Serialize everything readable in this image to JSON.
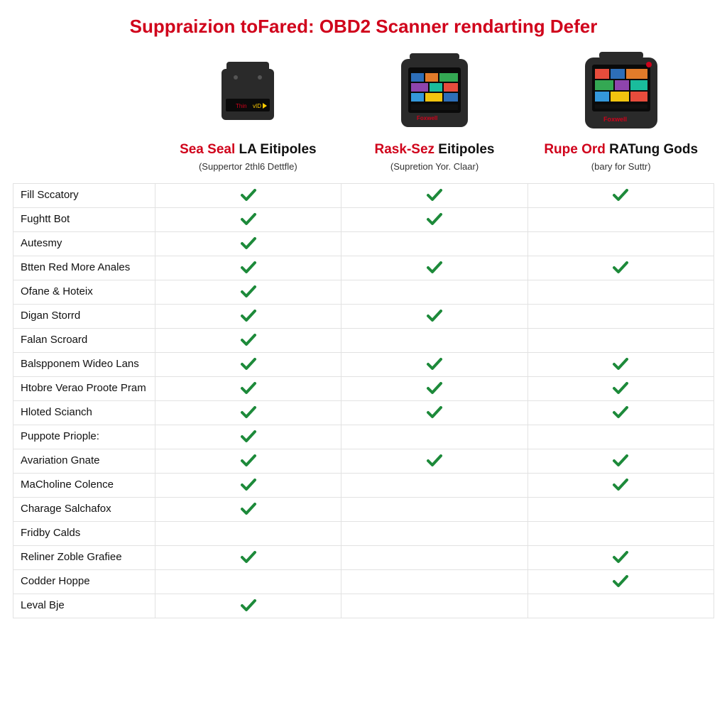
{
  "title": "Suppraizion toFared: OBD2 Scanner rendarting Defer",
  "title_color": "#d0021b",
  "check_color": "#1d8a3a",
  "border_color": "#e2e2e2",
  "products": [
    {
      "name_red": "Sea Seal",
      "name_black": " LA Eitipoles",
      "subtitle": "(Suppertor 2thl6 Dettfle)",
      "device_style": "small"
    },
    {
      "name_red": "Rask-Sez",
      "name_black": " Eitipoles",
      "subtitle": "(Supretion Yor. Claar)",
      "device_style": "medium"
    },
    {
      "name_red": "Rupe Ord",
      "name_black": " RATung Gods",
      "subtitle": "(bary for Suttr)",
      "device_style": "large"
    }
  ],
  "features": [
    {
      "label": "Fill Sccatory",
      "checks": [
        true,
        true,
        true
      ]
    },
    {
      "label": "Fughtt Bot",
      "checks": [
        true,
        true,
        false
      ]
    },
    {
      "label": "Autesmy",
      "checks": [
        true,
        false,
        false
      ]
    },
    {
      "label": "Btten Red More Anales",
      "checks": [
        true,
        true,
        true
      ]
    },
    {
      "label": "Ofane & Hoteix",
      "checks": [
        true,
        false,
        false
      ]
    },
    {
      "label": "Digan Storrd",
      "checks": [
        true,
        true,
        false
      ]
    },
    {
      "label": "Falan Scroard",
      "checks": [
        true,
        false,
        false
      ]
    },
    {
      "label": "Balspponem Wideo Lans",
      "checks": [
        true,
        true,
        true
      ]
    },
    {
      "label": "Htobre Verao Proote Pram",
      "checks": [
        true,
        true,
        true
      ]
    },
    {
      "label": "Hloted Scianch",
      "checks": [
        true,
        true,
        true
      ]
    },
    {
      "label": "Puppote Priople:",
      "checks": [
        true,
        false,
        false
      ]
    },
    {
      "label": "Avariation Gnate",
      "checks": [
        true,
        true,
        true
      ]
    },
    {
      "label": "MaCholine Colence",
      "checks": [
        true,
        false,
        true
      ]
    },
    {
      "label": "Charage Salchafox",
      "checks": [
        true,
        false,
        false
      ]
    },
    {
      "label": "Fridby Calds",
      "checks": [
        false,
        false,
        false
      ]
    },
    {
      "label": "Reliner Zoble Grafiee",
      "checks": [
        true,
        false,
        true
      ]
    },
    {
      "label": "Codder Hoppe",
      "checks": [
        false,
        false,
        true
      ]
    },
    {
      "label": "Leval Bje",
      "checks": [
        true,
        false,
        false
      ]
    }
  ],
  "device_svg": {
    "body_color": "#2a2a2a",
    "screen_dark": "#0a0a0a",
    "brand_color": "#d0021b",
    "accent_yellow": "#ffcc00",
    "tile_colors": [
      "#2d6eb8",
      "#e27b2a",
      "#34a853",
      "#8e44ad",
      "#1abc9c",
      "#e74c3c",
      "#3498db",
      "#f1c40f"
    ]
  }
}
